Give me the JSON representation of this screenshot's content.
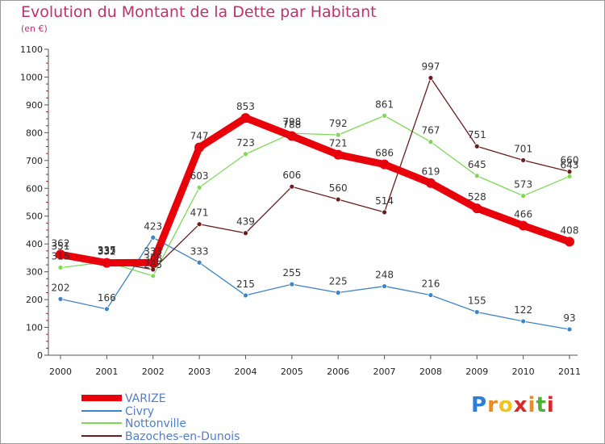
{
  "title": "Evolution du Montant de la Dette par Habitant",
  "subtitle": "(en €)",
  "logo": {
    "text": "Proxiti",
    "letter_colors": [
      "#2b7fd8",
      "#e98b26",
      "#f3c21b",
      "#d7292a",
      "#e98b26",
      "#4db338",
      "#d7292a"
    ]
  },
  "chart_data": {
    "type": "line",
    "x": [
      "2000",
      "2001",
      "2002",
      "2003",
      "2004",
      "2005",
      "2006",
      "2007",
      "2008",
      "2009",
      "2010",
      "2011"
    ],
    "ylim": [
      0,
      1100
    ],
    "yticks": [
      0,
      100,
      200,
      300,
      400,
      500,
      600,
      700,
      800,
      900,
      1000,
      1100
    ],
    "grid": false,
    "legend_position": "bottom-left",
    "series": [
      {
        "name": "VARIZE",
        "color": "#e8000b",
        "values": [
          362,
          332,
          333,
          747,
          853,
          788,
          721,
          686,
          619,
          528,
          466,
          408
        ],
        "labels": [
          "362",
          "332",
          "333",
          "747",
          "853",
          "788",
          "721",
          "686",
          "619",
          "528",
          "466",
          "408"
        ]
      },
      {
        "name": "Civry",
        "color": "#3d85c6",
        "values": [
          202,
          166,
          423,
          333,
          215,
          255,
          225,
          248,
          216,
          155,
          122,
          93
        ],
        "labels": [
          "202",
          "166",
          "423",
          "333",
          "215",
          "255",
          "225",
          "248",
          "216",
          "155",
          "122",
          "93"
        ]
      },
      {
        "name": "Nottonville",
        "color": "#7ed957",
        "values": [
          315,
          335,
          285,
          603,
          723,
          798,
          792,
          861,
          767,
          645,
          573,
          643
        ],
        "labels": [
          "315",
          "335",
          "285",
          "603",
          "723",
          "798",
          "792",
          "861",
          "767",
          "645",
          "573",
          "643"
        ]
      },
      {
        "name": "Bazoches-en-Dunois",
        "color": "#6b1c1c",
        "values": [
          351,
          337,
          308,
          471,
          439,
          606,
          560,
          514,
          997,
          751,
          701,
          660
        ],
        "labels": [
          "351",
          "337",
          "308",
          "471",
          "439",
          "606",
          "560",
          "514",
          "997",
          "751",
          "701",
          "660"
        ]
      }
    ]
  }
}
